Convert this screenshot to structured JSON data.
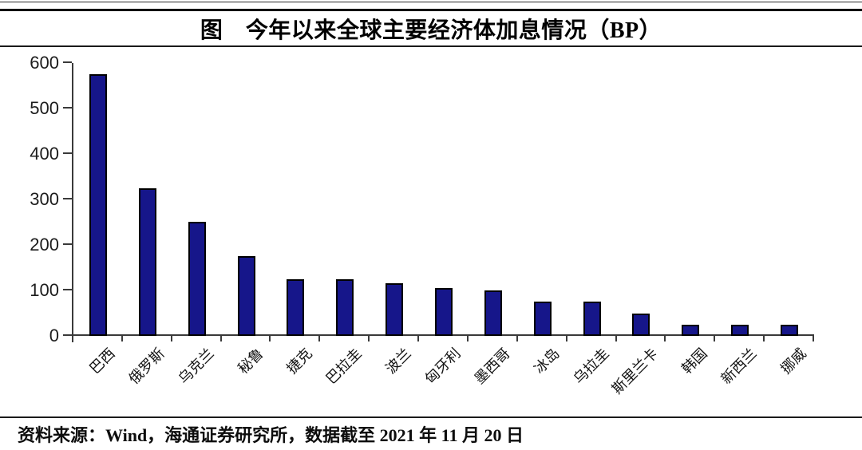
{
  "title": "图　今年以来全球主要经济体加息情况（BP）",
  "source_note": "资料来源：Wind，海通证券研究所，数据截至 2021 年 11 月 20 日",
  "chart_data": {
    "type": "bar",
    "title": "图 今年以来全球主要经济体加息情况（BP）",
    "categories": [
      "巴西",
      "俄罗斯",
      "乌克兰",
      "秘鲁",
      "捷克",
      "巴拉圭",
      "波兰",
      "匈牙利",
      "墨西哥",
      "冰岛",
      "乌拉圭",
      "斯里兰卡",
      "韩国",
      "新西兰",
      "挪威"
    ],
    "values": [
      575,
      325,
      250,
      175,
      125,
      125,
      115,
      105,
      100,
      75,
      75,
      50,
      25,
      25,
      25
    ],
    "xlabel": "",
    "ylabel": "",
    "unit": "BP",
    "ylim": [
      0,
      600
    ],
    "yticks": [
      0,
      100,
      200,
      300,
      400,
      500,
      600
    ],
    "grid": false,
    "legend": false,
    "bar_color": "#16168a",
    "bar_border_color": "#000000",
    "axis_color": "#3a3a3a",
    "tick_label_color": "#1c1c1c"
  }
}
